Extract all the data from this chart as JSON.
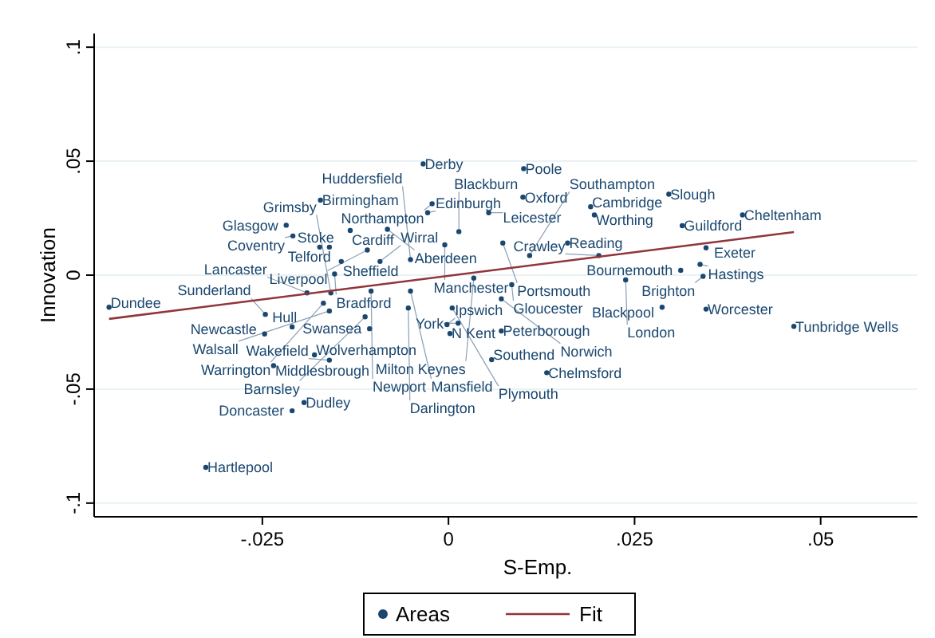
{
  "chart_data": {
    "type": "scatter",
    "xlabel": "S-Emp.",
    "ylabel": "Innovation",
    "xlim": [
      -0.0476,
      0.063
    ],
    "ylim": [
      -0.106,
      0.106
    ],
    "xticks": [
      {
        "value": -0.025,
        "label": "-.025"
      },
      {
        "value": 0,
        "label": "0"
      },
      {
        "value": 0.025,
        "label": ".025"
      },
      {
        "value": 0.05,
        "label": ".05"
      }
    ],
    "yticks": [
      {
        "value": -0.1,
        "label": "-.1"
      },
      {
        "value": -0.05,
        "label": "-.05"
      },
      {
        "value": 0,
        "label": "0"
      },
      {
        "value": 0.05,
        "label": ".05"
      },
      {
        "value": 0.1,
        "label": ".1"
      }
    ],
    "grid": "y",
    "legend": "bottom",
    "series": [
      {
        "name": "Areas",
        "marker": "circle",
        "color": "#1a476f",
        "x": [
          -0.0034,
          0.0101,
          -0.0172,
          0.01,
          0.0296,
          0.0191,
          0.0196,
          0.0395,
          0.0314,
          0.0346,
          0.0338,
          0.0312,
          0.0342,
          0.0287,
          0.0346,
          0.0464,
          0.0132,
          0.0058,
          0.0071,
          0.0002,
          0.0013,
          -0.0002,
          -0.0106,
          -0.0326,
          -0.0194,
          -0.021,
          -0.0235,
          -0.018,
          -0.016,
          -0.0247,
          -0.021,
          -0.0246,
          -0.0456,
          -0.0028,
          0.0054,
          -0.0022,
          -0.0218,
          -0.0209,
          -0.0132,
          -0.0082,
          0.0014,
          -0.0173,
          -0.016,
          -0.0109,
          -0.0005,
          0.0073,
          0.016,
          0.0109,
          0.0202,
          -0.0144,
          -0.0092,
          -0.0051,
          -0.0153,
          0.0034,
          0.0085,
          0.0238,
          -0.019,
          -0.0158,
          -0.0104,
          -0.0051,
          -0.0168,
          -0.016,
          -0.0112,
          -0.0054,
          0.0005,
          0.0071
        ],
        "values": [
          0.0488,
          0.0467,
          0.0329,
          0.0342,
          0.0355,
          0.03,
          0.0264,
          0.0264,
          0.0217,
          0.012,
          0.0047,
          0.0021,
          -0.0005,
          -0.0141,
          -0.0149,
          -0.0225,
          -0.0428,
          -0.0371,
          -0.0245,
          -0.0256,
          -0.0211,
          -0.0217,
          -0.0235,
          -0.0843,
          -0.0559,
          -0.0595,
          -0.0397,
          -0.035,
          -0.0373,
          -0.0258,
          -0.0227,
          -0.0172,
          -0.0141,
          0.0274,
          0.0274,
          0.0313,
          0.0219,
          0.0172,
          0.0196,
          0.0201,
          0.0191,
          0.0123,
          0.0123,
          0.011,
          0.0133,
          0.0141,
          0.0141,
          0.0086,
          0.0086,
          0.006,
          0.006,
          0.0068,
          0.0005,
          -0.0013,
          -0.0042,
          -0.0021,
          -0.0078,
          -0.0078,
          -0.007,
          -0.007,
          -0.0123,
          -0.0157,
          -0.0183,
          -0.0144,
          -0.0144,
          -0.0104
        ]
      },
      {
        "name": "Fit",
        "type": "line",
        "color": "#90353b",
        "x": [
          -0.0456,
          0.0464
        ],
        "values": [
          -0.0192,
          0.0189
        ]
      }
    ],
    "annotations": [
      {
        "text": "Derby",
        "x": -0.0034,
        "y": 0.0488
      },
      {
        "text": "Poole",
        "x": 0.0101,
        "y": 0.0467
      },
      {
        "text": "Birmingham",
        "x": -0.0172,
        "y": 0.0329
      },
      {
        "text": "Oxford",
        "x": 0.01,
        "y": 0.0342
      },
      {
        "text": "Slough",
        "x": 0.0296,
        "y": 0.0355
      },
      {
        "text": "Cambridge",
        "x": 0.0191,
        "y": 0.03
      },
      {
        "text": "Worthing",
        "x": 0.0196,
        "y": 0.0264
      },
      {
        "text": "Cheltenham",
        "x": 0.0395,
        "y": 0.0264
      },
      {
        "text": "Guildford",
        "x": 0.0314,
        "y": 0.0217
      },
      {
        "text": "Exeter",
        "x": 0.0346,
        "y": 0.012
      },
      {
        "text": "Hastings",
        "x": 0.0338,
        "y": 0.0047
      },
      {
        "text": "Bournemouth",
        "x": 0.0312,
        "y": 0.0021
      },
      {
        "text": "Brighton",
        "x": 0.0342,
        "y": -0.0005
      },
      {
        "text": "Blackpool",
        "x": 0.0287,
        "y": -0.0141
      },
      {
        "text": "Worcester",
        "x": 0.0346,
        "y": -0.0149
      },
      {
        "text": "Tunbridge Wells",
        "x": 0.0464,
        "y": -0.0225
      },
      {
        "text": "Chelmsford",
        "x": 0.0132,
        "y": -0.0428
      },
      {
        "text": "Southend",
        "x": 0.0058,
        "y": -0.0371
      },
      {
        "text": "Peterborough",
        "x": 0.0071,
        "y": -0.0245
      },
      {
        "text": "N Kent",
        "x": 0.0002,
        "y": -0.0256
      },
      {
        "text": "York",
        "x": 0.0013,
        "y": -0.0211
      },
      {
        "text": "Ipswich",
        "x": -0.0002,
        "y": -0.0217
      },
      {
        "text": "Swansea",
        "x": -0.0106,
        "y": -0.0235
      },
      {
        "text": "Hartlepool",
        "x": -0.0326,
        "y": -0.0843
      },
      {
        "text": "Dudley",
        "x": -0.0194,
        "y": -0.0559
      },
      {
        "text": "Doncaster",
        "x": -0.021,
        "y": -0.0595
      },
      {
        "text": "Middlesbrough",
        "x": -0.0235,
        "y": -0.0397
      },
      {
        "text": "Wolverhampton",
        "x": -0.018,
        "y": -0.035
      },
      {
        "text": "Wakefield",
        "x": -0.016,
        "y": -0.0373
      },
      {
        "text": "Newcastle",
        "x": -0.0247,
        "y": -0.0258
      },
      {
        "text": "Hull",
        "x": -0.021,
        "y": -0.0227
      },
      {
        "text": "Sunderland",
        "x": -0.0246,
        "y": -0.0172
      },
      {
        "text": "Dundee",
        "x": -0.0456,
        "y": -0.0141
      },
      {
        "text": "Edinburgh",
        "x": -0.0028,
        "y": 0.0274
      },
      {
        "text": "Leicester",
        "x": 0.0054,
        "y": 0.0274
      },
      {
        "text": "Northampton",
        "x": -0.0022,
        "y": 0.0313
      },
      {
        "text": "Glasgow",
        "x": -0.0218,
        "y": 0.0219
      },
      {
        "text": "Coventry",
        "x": -0.0209,
        "y": 0.0172
      },
      {
        "text": "Cardiff",
        "x": -0.0132,
        "y": 0.0196
      },
      {
        "text": "Aberdeen",
        "x": -0.0082,
        "y": 0.0201
      },
      {
        "text": "Blackburn",
        "x": 0.0014,
        "y": 0.0191
      },
      {
        "text": "Telford",
        "x": -0.0173,
        "y": 0.0123
      },
      {
        "text": "Stoke",
        "x": -0.016,
        "y": 0.0123
      },
      {
        "text": "Liverpool",
        "x": -0.0109,
        "y": 0.011
      },
      {
        "text": "Manchester",
        "x": -0.0005,
        "y": 0.0133
      },
      {
        "text": "Portsmouth",
        "x": 0.0073,
        "y": 0.0141
      },
      {
        "text": "Reading",
        "x": 0.016,
        "y": 0.0141
      },
      {
        "text": "Southampton",
        "x": 0.0109,
        "y": 0.0086
      },
      {
        "text": "Crawley",
        "x": 0.0202,
        "y": 0.0086
      },
      {
        "text": "Sheffield",
        "x": -0.0144,
        "y": 0.006
      },
      {
        "text": "Wirral",
        "x": -0.0092,
        "y": 0.006
      },
      {
        "text": "Huddersfield",
        "x": -0.0051,
        "y": 0.0068
      },
      {
        "text": "Bradford",
        "x": -0.0153,
        "y": 0.0005
      },
      {
        "text": "Milton Keynes",
        "x": 0.0034,
        "y": -0.0013
      },
      {
        "text": "Gloucester",
        "x": 0.0085,
        "y": -0.0042
      },
      {
        "text": "London",
        "x": 0.0238,
        "y": -0.0021
      },
      {
        "text": "Lancaster",
        "x": -0.019,
        "y": -0.0078
      },
      {
        "text": "Grimsby",
        "x": -0.0158,
        "y": -0.0078
      },
      {
        "text": "Newport",
        "x": -0.0104,
        "y": -0.007
      },
      {
        "text": "Mansfield",
        "x": -0.0051,
        "y": -0.007
      },
      {
        "text": "Warrington",
        "x": -0.0168,
        "y": -0.0123
      },
      {
        "text": "Walsall",
        "x": -0.016,
        "y": -0.0157
      },
      {
        "text": "Barnsley",
        "x": -0.0112,
        "y": -0.0183
      },
      {
        "text": "Darlington",
        "x": -0.0054,
        "y": -0.0144
      },
      {
        "text": "Plymouth",
        "x": 0.0005,
        "y": -0.0144
      },
      {
        "text": "Norwich",
        "x": 0.0071,
        "y": -0.0104
      }
    ]
  }
}
